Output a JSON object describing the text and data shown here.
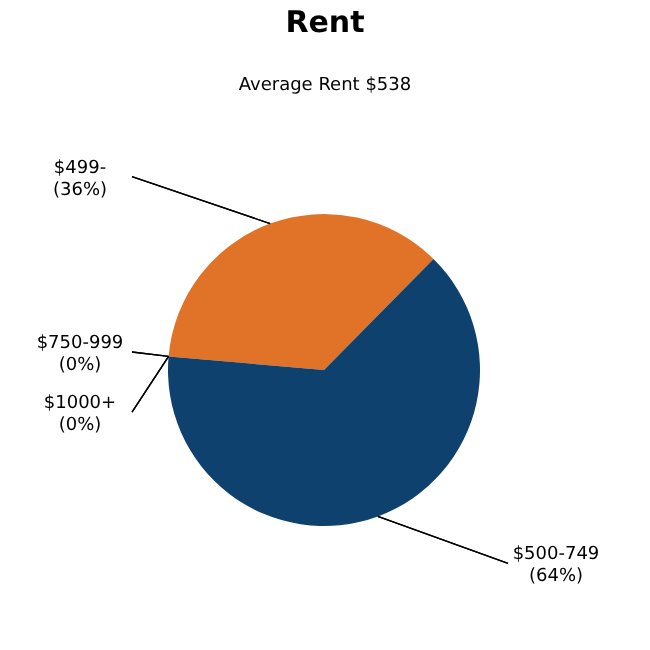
{
  "chart_data": {
    "type": "pie",
    "title": "Rent",
    "subtitle": "Average Rent  $538",
    "categories": [
      "$499-",
      "$500-749",
      "$750-999",
      "$1000+"
    ],
    "values": [
      36,
      64,
      0,
      0
    ],
    "colors": [
      "#e07328",
      "#0e416d",
      "#5b8cc0",
      "#8fb04a"
    ],
    "value_labels": [
      "(36%)",
      "(64%)",
      "(0%)",
      "(0%)"
    ]
  }
}
